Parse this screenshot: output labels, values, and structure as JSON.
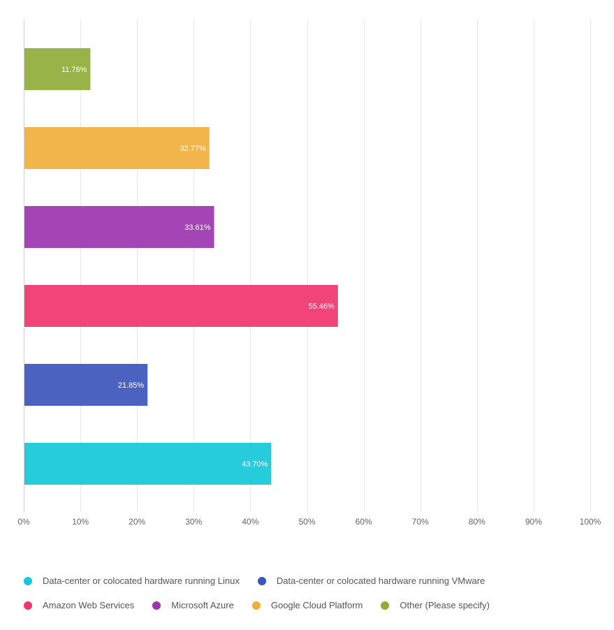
{
  "chart_data": {
    "type": "bar",
    "orientation": "horizontal",
    "categories": [
      "Other (Please specify)",
      "Google Cloud Platform",
      "Microsoft Azure",
      "Amazon Web Services",
      "Data-center or colocated hardware running VMware",
      "Data-center or colocated hardware running Linux"
    ],
    "values": [
      11.76,
      32.77,
      33.61,
      55.46,
      21.85,
      43.7
    ],
    "value_labels": [
      "11.76%",
      "32.77%",
      "33.61%",
      "55.46%",
      "21.85%",
      "43.70%"
    ],
    "colors": [
      "#8fae38",
      "#f0af3c",
      "#9c35b0",
      "#f0346c",
      "#3d55bb",
      "#14c8d8"
    ],
    "xlim": [
      0,
      100
    ],
    "x_ticks": [
      "0%",
      "10%",
      "20%",
      "30%",
      "40%",
      "50%",
      "60%",
      "70%",
      "80%",
      "90%",
      "100%"
    ],
    "grid": true,
    "legend_position": "bottom",
    "legend": {
      "rows": [
        [
          {
            "label": "Data-center or colocated hardware running Linux",
            "color": "#14c8d8"
          },
          {
            "label": "Data-center or colocated hardware running VMware",
            "color": "#3d55bb"
          }
        ],
        [
          {
            "label": "Amazon Web Services",
            "color": "#f0346c"
          },
          {
            "label": "Microsoft Azure",
            "color": "#9c35b0"
          },
          {
            "label": "Google Cloud Platform",
            "color": "#f0af3c"
          },
          {
            "label": "Other (Please specify)",
            "color": "#8fae38"
          }
        ]
      ]
    }
  }
}
